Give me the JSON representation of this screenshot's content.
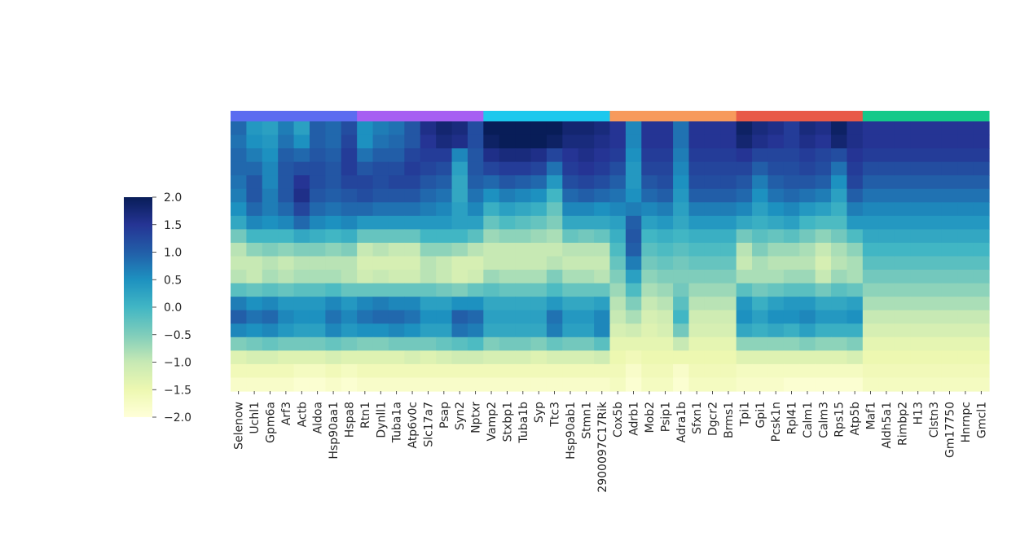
{
  "chart_data": {
    "type": "heatmap",
    "colormap": "YlGnBu",
    "vmin": -2.0,
    "vmax": 2.0,
    "colorbar_ticks": [
      "2.0",
      "1.5",
      "1.0",
      "0.5",
      "0.0",
      "−0.5",
      "−1.0",
      "−1.5",
      "−2.0"
    ],
    "grid": false,
    "n_rows": 20,
    "genes": [
      "Selenow",
      "Uchl1",
      "Gpm6a",
      "Arf3",
      "Actb",
      "Aldoa",
      "Hsp90aa1",
      "Hspa8",
      "Rtn1",
      "Dynll1",
      "Tuba1a",
      "Atp6v0c",
      "Slc17a7",
      "Psap",
      "Syn2",
      "Nptxr",
      "Vamp2",
      "Stxbp1",
      "Tuba1b",
      "Syp",
      "Ttc3",
      "Hsp90ab1",
      "Stmn1",
      "2900097C17Rik",
      "Cox5b",
      "Adrb1",
      "Mob2",
      "Psip1",
      "Adra1b",
      "Sfxn1",
      "Dgcr2",
      "Brms1",
      "Tpi1",
      "Gpi1",
      "Pcsk1n",
      "Rpl41",
      "Calm1",
      "Calm3",
      "Rps15",
      "Atp5b",
      "Maf1",
      "Aldh5a1",
      "Rimbp2",
      "H13",
      "Clstn3",
      "Gm17750",
      "Hnrnpc",
      "Gmcl1"
    ],
    "tick_labels": [
      "Selenow",
      "Uchl1",
      "Gpm6a",
      "Arf3",
      "Actb",
      "Aldoa",
      "Hsp90aa1",
      "Hspa8",
      "Rtn1",
      "Dynll1",
      "Tuba1a",
      "Atp6v0c",
      "Slc17a7",
      "Psap",
      "Syn2",
      "Nptxr",
      "Vamp2",
      "Stxbp1",
      "Tuba1b",
      "Syp",
      "Ttc3",
      "Hsp90ab1",
      "Stmn1",
      "2900097C17Rik",
      "Cox5b",
      "Adrb1",
      "Mob2",
      "Psip1",
      "Adra1b",
      "Sfxn1",
      "Dgcr2",
      "Brms1",
      "Tpi1",
      "Gpi1",
      "Pcsk1n",
      "Rpl41",
      "Calm1",
      "Calm3",
      "Rps15",
      "Atp5b",
      "Maf1",
      "Aldh5a1",
      "Rimbp2",
      "H13",
      "Clstn3",
      "Gm17750",
      "Hnrnpc",
      "Gmcl1"
    ],
    "groups": [
      {
        "color": "#5b6cf0",
        "genes": 8
      },
      {
        "color": "#a65ff2",
        "genes": 8
      },
      {
        "color": "#1cc8ed",
        "genes": 8
      },
      {
        "color": "#f79a5c",
        "genes": 8
      },
      {
        "color": "#e85a48",
        "genes": 8
      },
      {
        "color": "#14c98a",
        "genes": 8
      }
    ],
    "values": [
      [
        0.9,
        0.4,
        0.3,
        0.7,
        0.3,
        1.0,
        0.9,
        1.2,
        0.5,
        0.7,
        0.8,
        1.1,
        1.6,
        1.8,
        1.7,
        1.2,
        2.0,
        2.0,
        2.0,
        2.0,
        2.0,
        1.8,
        1.8,
        1.7,
        1.5,
        0.6,
        1.5,
        1.5,
        0.8,
        1.5,
        1.5,
        1.5,
        1.9,
        1.7,
        1.6,
        1.4,
        1.7,
        1.6,
        1.9,
        1.6,
        1.5,
        1.5,
        1.5,
        1.5,
        1.5,
        1.5,
        1.5,
        1.5
      ],
      [
        0.8,
        0.5,
        0.4,
        0.8,
        0.5,
        1.0,
        0.9,
        1.3,
        0.5,
        0.8,
        0.9,
        1.1,
        1.5,
        1.7,
        1.6,
        1.2,
        1.9,
        2.0,
        2.0,
        2.0,
        1.9,
        1.7,
        1.7,
        1.6,
        1.5,
        0.6,
        1.5,
        1.5,
        0.8,
        1.5,
        1.5,
        1.5,
        1.8,
        1.6,
        1.5,
        1.4,
        1.6,
        1.5,
        1.8,
        1.6,
        1.5,
        1.5,
        1.5,
        1.5,
        1.5,
        1.5,
        1.5,
        1.5
      ],
      [
        0.9,
        0.7,
        0.5,
        1.0,
        0.9,
        1.1,
        1.0,
        1.4,
        0.8,
        1.0,
        1.0,
        1.3,
        1.4,
        1.4,
        0.6,
        1.1,
        1.6,
        1.7,
        1.7,
        1.6,
        1.3,
        1.5,
        1.6,
        1.5,
        1.4,
        0.5,
        1.4,
        1.4,
        0.7,
        1.4,
        1.4,
        1.4,
        1.5,
        1.3,
        1.3,
        1.3,
        1.4,
        1.3,
        1.2,
        1.5,
        1.4,
        1.4,
        1.4,
        1.4,
        1.4,
        1.4,
        1.4,
        1.4
      ],
      [
        0.9,
        0.9,
        0.6,
        1.1,
        1.2,
        1.2,
        1.1,
        1.4,
        1.1,
        1.2,
        1.2,
        1.4,
        1.3,
        1.2,
        0.3,
        1.1,
        1.3,
        1.4,
        1.4,
        1.3,
        0.8,
        1.4,
        1.5,
        1.4,
        1.2,
        0.4,
        1.3,
        1.3,
        0.6,
        1.3,
        1.3,
        1.3,
        1.3,
        1.0,
        1.2,
        1.2,
        1.3,
        1.2,
        0.8,
        1.4,
        1.2,
        1.2,
        1.2,
        1.2,
        1.2,
        1.2,
        1.2,
        1.2
      ],
      [
        0.8,
        1.1,
        0.6,
        1.1,
        1.5,
        1.2,
        1.1,
        1.3,
        1.3,
        1.2,
        1.3,
        1.3,
        1.1,
        1.0,
        0.2,
        1.0,
        0.9,
        1.1,
        1.0,
        0.9,
        0.4,
        1.2,
        1.3,
        1.2,
        1.0,
        0.4,
        1.1,
        1.2,
        0.5,
        1.2,
        1.2,
        1.2,
        1.1,
        0.7,
        1.0,
        1.1,
        1.1,
        1.0,
        0.5,
        1.3,
        1.0,
        1.0,
        1.0,
        1.0,
        1.0,
        1.0,
        1.0,
        1.0
      ],
      [
        0.7,
        1.1,
        0.7,
        1.1,
        1.6,
        1.1,
        1.0,
        1.1,
        1.2,
        1.1,
        1.1,
        1.1,
        0.9,
        0.8,
        0.2,
        0.8,
        0.5,
        0.7,
        0.6,
        0.5,
        0.0,
        0.9,
        1.0,
        0.9,
        0.8,
        0.5,
        0.9,
        1.0,
        0.4,
        1.0,
        1.0,
        1.0,
        0.9,
        0.5,
        0.8,
        0.9,
        0.8,
        0.7,
        0.3,
        1.0,
        0.8,
        0.8,
        0.8,
        0.8,
        0.8,
        0.8,
        0.8,
        0.8
      ],
      [
        0.5,
        0.9,
        0.7,
        0.9,
        1.3,
        0.9,
        0.8,
        0.9,
        0.9,
        0.8,
        0.8,
        0.8,
        0.7,
        0.6,
        0.3,
        0.6,
        0.1,
        0.3,
        0.2,
        0.1,
        -0.3,
        0.6,
        0.6,
        0.5,
        0.6,
        0.7,
        0.6,
        0.7,
        0.3,
        0.7,
        0.7,
        0.7,
        0.6,
        0.3,
        0.5,
        0.6,
        0.4,
        0.3,
        0.1,
        0.7,
        0.6,
        0.6,
        0.6,
        0.6,
        0.6,
        0.6,
        0.6,
        0.6
      ],
      [
        0.2,
        0.6,
        0.5,
        0.6,
        0.9,
        0.6,
        0.5,
        0.6,
        0.4,
        0.4,
        0.4,
        0.4,
        0.4,
        0.4,
        0.3,
        0.3,
        -0.3,
        -0.1,
        -0.2,
        -0.3,
        -0.5,
        0.2,
        0.2,
        0.2,
        0.3,
        1.0,
        0.3,
        0.4,
        0.2,
        0.4,
        0.4,
        0.4,
        0.2,
        0.1,
        0.2,
        0.3,
        0.0,
        -0.1,
        -0.1,
        0.4,
        0.4,
        0.4,
        0.4,
        0.4,
        0.4,
        0.4,
        0.4,
        0.4
      ],
      [
        -0.4,
        0.0,
        0.0,
        0.0,
        0.2,
        0.1,
        0.0,
        0.1,
        -0.3,
        -0.3,
        -0.3,
        -0.3,
        0.0,
        0.0,
        0.0,
        -0.2,
        -0.7,
        -0.6,
        -0.6,
        -0.7,
        -0.8,
        -0.3,
        -0.4,
        -0.3,
        0.1,
        1.1,
        0.0,
        0.1,
        0.0,
        0.1,
        0.1,
        0.1,
        -0.4,
        -0.2,
        -0.3,
        -0.2,
        -0.4,
        -0.6,
        -0.4,
        -0.1,
        0.2,
        0.2,
        0.2,
        0.2,
        0.2,
        0.2,
        0.2,
        0.2
      ],
      [
        -0.9,
        -0.6,
        -0.5,
        -0.6,
        -0.5,
        -0.5,
        -0.6,
        -0.5,
        -1.0,
        -0.9,
        -1.0,
        -1.0,
        -0.6,
        -0.6,
        -0.7,
        -0.9,
        -1.0,
        -1.0,
        -1.0,
        -1.0,
        -1.0,
        -0.9,
        -0.9,
        -0.9,
        -0.1,
        1.0,
        -0.2,
        -0.1,
        -0.2,
        -0.1,
        -0.1,
        -0.1,
        -0.9,
        -0.5,
        -0.7,
        -0.7,
        -0.8,
        -1.0,
        -0.8,
        -0.6,
        0.0,
        0.0,
        0.0,
        0.0,
        0.0,
        0.0,
        0.0,
        0.0
      ],
      [
        -1.0,
        -1.0,
        -0.9,
        -1.0,
        -0.9,
        -0.9,
        -0.9,
        -0.9,
        -1.2,
        -1.2,
        -1.2,
        -1.2,
        -0.9,
        -1.0,
        -1.2,
        -1.2,
        -1.0,
        -1.0,
        -1.0,
        -1.0,
        -0.9,
        -1.0,
        -1.0,
        -1.0,
        -0.3,
        0.7,
        -0.4,
        -0.3,
        -0.4,
        -0.3,
        -0.3,
        -0.3,
        -1.0,
        -0.8,
        -0.9,
        -0.9,
        -0.9,
        -1.2,
        -0.9,
        -0.8,
        -0.2,
        -0.2,
        -0.2,
        -0.2,
        -0.2,
        -0.2,
        -0.2,
        -0.2
      ],
      [
        -0.9,
        -1.0,
        -0.8,
        -0.9,
        -0.8,
        -0.8,
        -0.8,
        -0.9,
        -1.1,
        -1.0,
        -1.1,
        -1.1,
        -0.9,
        -1.0,
        -1.2,
        -1.1,
        -0.7,
        -0.8,
        -0.8,
        -0.8,
        -0.5,
        -0.8,
        -0.8,
        -0.9,
        -0.5,
        0.3,
        -0.6,
        -0.5,
        -0.5,
        -0.5,
        -0.5,
        -0.5,
        -0.8,
        -0.8,
        -0.8,
        -0.7,
        -0.7,
        -1.0,
        -0.7,
        -0.8,
        -0.4,
        -0.4,
        -0.4,
        -0.4,
        -0.4,
        -0.4,
        -0.4,
        -0.4
      ],
      [
        -0.2,
        -0.3,
        -0.2,
        -0.3,
        -0.2,
        -0.2,
        -0.1,
        -0.3,
        -0.3,
        -0.3,
        -0.3,
        -0.3,
        -0.3,
        -0.4,
        -0.5,
        -0.3,
        -0.2,
        -0.3,
        -0.3,
        -0.3,
        -0.1,
        -0.3,
        -0.3,
        -0.3,
        -0.7,
        -0.1,
        -0.8,
        -0.7,
        -0.4,
        -0.7,
        -0.7,
        -0.7,
        -0.2,
        -0.4,
        -0.3,
        -0.2,
        -0.2,
        -0.4,
        -0.2,
        -0.3,
        -0.6,
        -0.6,
        -0.6,
        -0.6,
        -0.6,
        -0.6,
        -0.6,
        -0.6
      ],
      [
        0.7,
        0.5,
        0.6,
        0.4,
        0.4,
        0.4,
        0.6,
        0.4,
        0.6,
        0.7,
        0.6,
        0.6,
        0.3,
        0.3,
        0.5,
        0.5,
        0.2,
        0.2,
        0.2,
        0.2,
        0.4,
        0.2,
        0.2,
        0.3,
        -0.9,
        -0.5,
        -1.0,
        -0.9,
        -0.2,
        -0.9,
        -0.9,
        -0.9,
        0.4,
        0.1,
        0.3,
        0.4,
        0.4,
        0.2,
        0.2,
        0.3,
        -0.8,
        -0.8,
        -0.8,
        -0.8,
        -0.8,
        -0.8,
        -0.8,
        -0.8
      ],
      [
        1.0,
        0.8,
        0.9,
        0.6,
        0.5,
        0.5,
        0.8,
        0.6,
        0.8,
        0.9,
        0.9,
        0.8,
        0.5,
        0.5,
        1.0,
        0.9,
        0.3,
        0.3,
        0.3,
        0.3,
        0.8,
        0.4,
        0.4,
        0.6,
        -1.0,
        -0.8,
        -1.2,
        -1.1,
        0.0,
        -1.1,
        -1.1,
        -1.1,
        0.5,
        0.3,
        0.5,
        0.5,
        0.6,
        0.4,
        0.4,
        0.5,
        -1.0,
        -1.0,
        -1.0,
        -1.0,
        -1.0,
        -1.0,
        -1.0,
        -1.0
      ],
      [
        0.6,
        0.5,
        0.6,
        0.4,
        0.3,
        0.3,
        0.6,
        0.4,
        0.5,
        0.5,
        0.6,
        0.5,
        0.3,
        0.3,
        0.8,
        0.7,
        0.2,
        0.2,
        0.2,
        0.2,
        0.7,
        0.3,
        0.3,
        0.6,
        -1.2,
        -1.1,
        -1.3,
        -1.2,
        -0.4,
        -1.2,
        -1.2,
        -1.2,
        0.2,
        0.1,
        0.2,
        0.1,
        0.3,
        0.1,
        0.1,
        0.1,
        -1.2,
        -1.2,
        -1.2,
        -1.2,
        -1.2,
        -1.2,
        -1.2,
        -1.2
      ],
      [
        -0.5,
        -0.4,
        -0.3,
        -0.4,
        -0.4,
        -0.4,
        -0.3,
        -0.4,
        -0.5,
        -0.5,
        -0.4,
        -0.4,
        -0.4,
        -0.3,
        -0.2,
        -0.1,
        -0.5,
        -0.4,
        -0.4,
        -0.5,
        -0.3,
        -0.4,
        -0.4,
        -0.2,
        -1.4,
        -1.4,
        -1.4,
        -1.4,
        -1.0,
        -1.4,
        -1.4,
        -1.4,
        -0.6,
        -0.6,
        -0.6,
        -0.6,
        -0.5,
        -0.6,
        -0.6,
        -0.5,
        -1.4,
        -1.4,
        -1.4,
        -1.4,
        -1.4,
        -1.4,
        -1.4,
        -1.4
      ],
      [
        -1.3,
        -1.2,
        -1.2,
        -1.3,
        -1.3,
        -1.3,
        -1.2,
        -1.3,
        -1.3,
        -1.3,
        -1.3,
        -1.2,
        -1.3,
        -1.2,
        -1.1,
        -1.1,
        -1.2,
        -1.2,
        -1.2,
        -1.3,
        -1.2,
        -1.2,
        -1.2,
        -1.1,
        -1.5,
        -1.6,
        -1.5,
        -1.5,
        -1.5,
        -1.5,
        -1.5,
        -1.5,
        -1.3,
        -1.3,
        -1.3,
        -1.3,
        -1.3,
        -1.3,
        -1.3,
        -1.2,
        -1.5,
        -1.5,
        -1.5,
        -1.5,
        -1.5,
        -1.5,
        -1.5,
        -1.5
      ],
      [
        -1.6,
        -1.6,
        -1.6,
        -1.6,
        -1.7,
        -1.7,
        -1.6,
        -1.7,
        -1.6,
        -1.6,
        -1.6,
        -1.6,
        -1.6,
        -1.6,
        -1.6,
        -1.6,
        -1.6,
        -1.6,
        -1.6,
        -1.6,
        -1.6,
        -1.6,
        -1.6,
        -1.6,
        -1.6,
        -1.8,
        -1.6,
        -1.6,
        -1.8,
        -1.6,
        -1.6,
        -1.6,
        -1.7,
        -1.7,
        -1.7,
        -1.7,
        -1.7,
        -1.7,
        -1.7,
        -1.7,
        -1.6,
        -1.6,
        -1.6,
        -1.6,
        -1.6,
        -1.6,
        -1.6,
        -1.6
      ],
      [
        -1.8,
        -1.8,
        -1.8,
        -1.8,
        -1.9,
        -1.9,
        -1.8,
        -1.9,
        -1.8,
        -1.8,
        -1.8,
        -1.8,
        -1.8,
        -1.8,
        -1.8,
        -1.8,
        -1.8,
        -1.8,
        -1.8,
        -1.8,
        -1.8,
        -1.8,
        -1.8,
        -1.8,
        -1.7,
        -1.9,
        -1.7,
        -1.7,
        -1.9,
        -1.7,
        -1.7,
        -1.7,
        -1.8,
        -1.8,
        -1.8,
        -1.9,
        -1.9,
        -1.9,
        -1.9,
        -1.9,
        -1.7,
        -1.7,
        -1.7,
        -1.7,
        -1.7,
        -1.7,
        -1.7,
        -1.7
      ]
    ]
  }
}
